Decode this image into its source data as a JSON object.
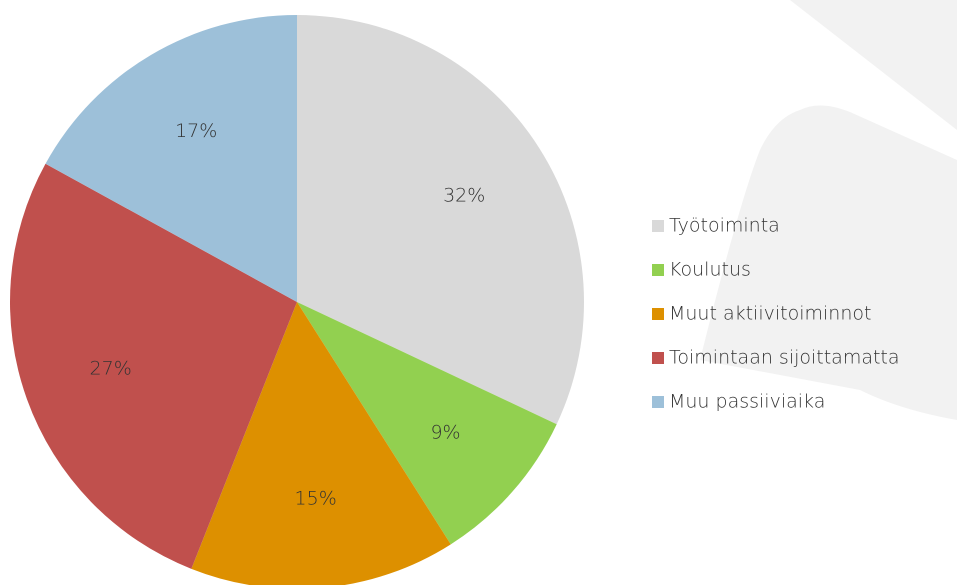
{
  "chart_data": {
    "type": "pie",
    "categories": [
      "Työtoiminta",
      "Koulutus",
      "Muut aktiivitoiminnot",
      "Toimintaan sijoittamatta",
      "Muu passiiviaika"
    ],
    "values": [
      32,
      9,
      15,
      27,
      17
    ],
    "value_labels": [
      "32%",
      "9%",
      "15%",
      "27%",
      "17%"
    ],
    "colors": [
      "#d9d9d9",
      "#92d050",
      "#dd9000",
      "#c0504d",
      "#9dc0d9"
    ],
    "legend": "right"
  }
}
